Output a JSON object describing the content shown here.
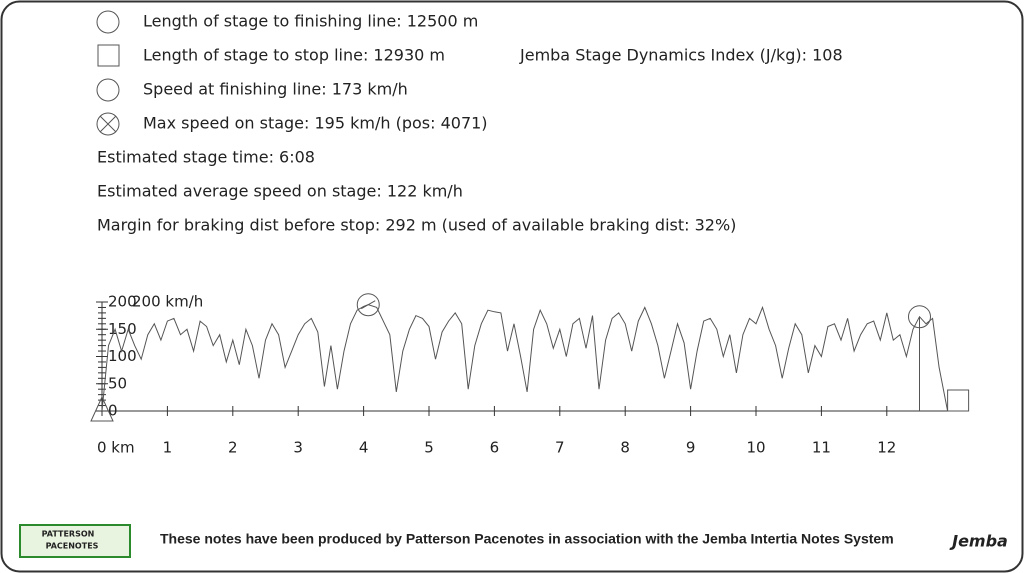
{
  "info": {
    "finish_length": "Length of stage to finishing line: 12500 m",
    "stop_length": "Length of stage to stop line: 12930 m",
    "dynamics_index": "Jemba Stage Dynamics Index (J/kg): 108",
    "finish_speed": "Speed at finishing line: 173 km/h",
    "max_speed": "Max speed on stage: 195 km/h (pos: 4071)",
    "stage_time": "Estimated stage time: 6:08",
    "avg_speed": "Estimated average speed on stage: 122 km/h",
    "braking": "Margin for braking dist before stop: 292 m (used of available braking dist: 32%)"
  },
  "chart_data": {
    "type": "line",
    "y_label": "200 km/h",
    "x": [
      0,
      0.1,
      0.2,
      0.3,
      0.4,
      0.5,
      0.6,
      0.7,
      0.8,
      0.9,
      1.0,
      1.1,
      1.2,
      1.3,
      1.4,
      1.5,
      1.6,
      1.7,
      1.8,
      1.9,
      2.0,
      2.1,
      2.2,
      2.3,
      2.4,
      2.5,
      2.6,
      2.7,
      2.8,
      2.9,
      3.0,
      3.1,
      3.2,
      3.3,
      3.4,
      3.5,
      3.6,
      3.7,
      3.8,
      3.9,
      4.0,
      4.071,
      4.2,
      4.4,
      4.5,
      4.6,
      4.7,
      4.8,
      4.9,
      5.0,
      5.1,
      5.2,
      5.3,
      5.4,
      5.5,
      5.6,
      5.7,
      5.8,
      5.9,
      6.0,
      6.1,
      6.2,
      6.3,
      6.4,
      6.5,
      6.6,
      6.7,
      6.8,
      6.9,
      7.0,
      7.1,
      7.2,
      7.3,
      7.4,
      7.5,
      7.6,
      7.7,
      7.8,
      7.9,
      8.0,
      8.1,
      8.2,
      8.3,
      8.4,
      8.5,
      8.6,
      8.7,
      8.8,
      8.9,
      9.0,
      9.1,
      9.2,
      9.3,
      9.4,
      9.5,
      9.6,
      9.7,
      9.8,
      9.9,
      10.0,
      10.1,
      10.2,
      10.3,
      10.4,
      10.5,
      10.6,
      10.7,
      10.8,
      10.9,
      11.0,
      11.1,
      11.2,
      11.3,
      11.4,
      11.5,
      11.6,
      11.7,
      11.8,
      11.9,
      12.0,
      12.1,
      12.2,
      12.3,
      12.4,
      12.5,
      12.6,
      12.7,
      12.8,
      12.93
    ],
    "series": [
      {
        "color": "#555555",
        "values": [
          0,
          120,
          150,
          110,
          150,
          120,
          95,
          140,
          160,
          130,
          165,
          170,
          140,
          150,
          110,
          165,
          155,
          120,
          140,
          90,
          130,
          85,
          150,
          120,
          60,
          130,
          160,
          140,
          80,
          110,
          140,
          160,
          170,
          145,
          45,
          120,
          40,
          110,
          160,
          185,
          192,
          195,
          190,
          140,
          35,
          110,
          150,
          175,
          170,
          155,
          95,
          145,
          165,
          180,
          160,
          40,
          120,
          160,
          185,
          182,
          180,
          110,
          160,
          100,
          35,
          150,
          185,
          160,
          115,
          150,
          100,
          160,
          170,
          115,
          175,
          40,
          130,
          170,
          180,
          160,
          110,
          165,
          190,
          160,
          120,
          60,
          110,
          160,
          125,
          40,
          110,
          165,
          170,
          150,
          100,
          140,
          70,
          140,
          170,
          160,
          190,
          150,
          120,
          60,
          115,
          160,
          140,
          70,
          120,
          100,
          155,
          160,
          130,
          170,
          110,
          140,
          160,
          165,
          130,
          180,
          130,
          140,
          100,
          150,
          173,
          160,
          170,
          80,
          0
        ]
      }
    ],
    "markers": [
      {
        "shape": "triangle",
        "x": 0,
        "y": 0
      },
      {
        "shape": "circle-cross",
        "x": 4.071,
        "y": 195
      },
      {
        "shape": "circle",
        "x": 12.5,
        "y": 173
      },
      {
        "shape": "square",
        "x": 12.93,
        "y": 0
      }
    ],
    "xlim": [
      0,
      13
    ],
    "ylim": [
      0,
      200
    ],
    "xticks": [
      {
        "value": 0,
        "label": "0 km"
      },
      1,
      2,
      3,
      4,
      5,
      6,
      7,
      8,
      9,
      10,
      11,
      12
    ],
    "yticks": [
      0,
      50,
      100,
      150,
      200
    ]
  },
  "footer": {
    "note": "These notes have been produced by Patterson Pacenotes in association with the Jemba Intertia Notes System",
    "logo_left_1": "PATTERSON",
    "logo_left_2": "PACENOTES",
    "logo_right": "Jemba"
  }
}
